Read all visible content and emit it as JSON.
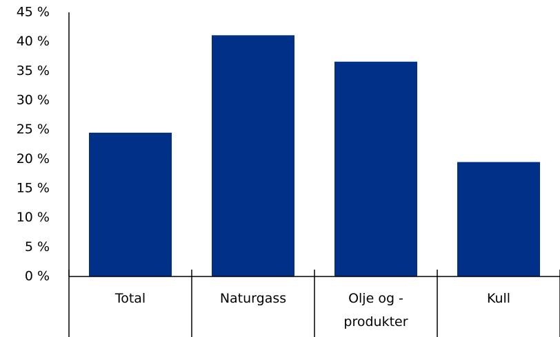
{
  "chart_data": {
    "type": "bar",
    "categories": [
      "Total",
      "Naturgass",
      "Olje og -produkter",
      "Kull"
    ],
    "values": [
      24.5,
      41.1,
      36.6,
      19.5
    ],
    "color": "#003087",
    "ylim": [
      0,
      45
    ],
    "yticks": [
      {
        "value": 0,
        "label": "0 %"
      },
      {
        "value": 5,
        "label": "5 %"
      },
      {
        "value": 10,
        "label": "10 %"
      },
      {
        "value": 15,
        "label": "15 %"
      },
      {
        "value": 20,
        "label": "20 %"
      },
      {
        "value": 25,
        "label": "25 %"
      },
      {
        "value": 30,
        "label": "30 %"
      },
      {
        "value": 35,
        "label": "35 %"
      },
      {
        "value": 40,
        "label": "40 %"
      },
      {
        "value": 45,
        "label": "45 %"
      }
    ],
    "grid": false
  }
}
